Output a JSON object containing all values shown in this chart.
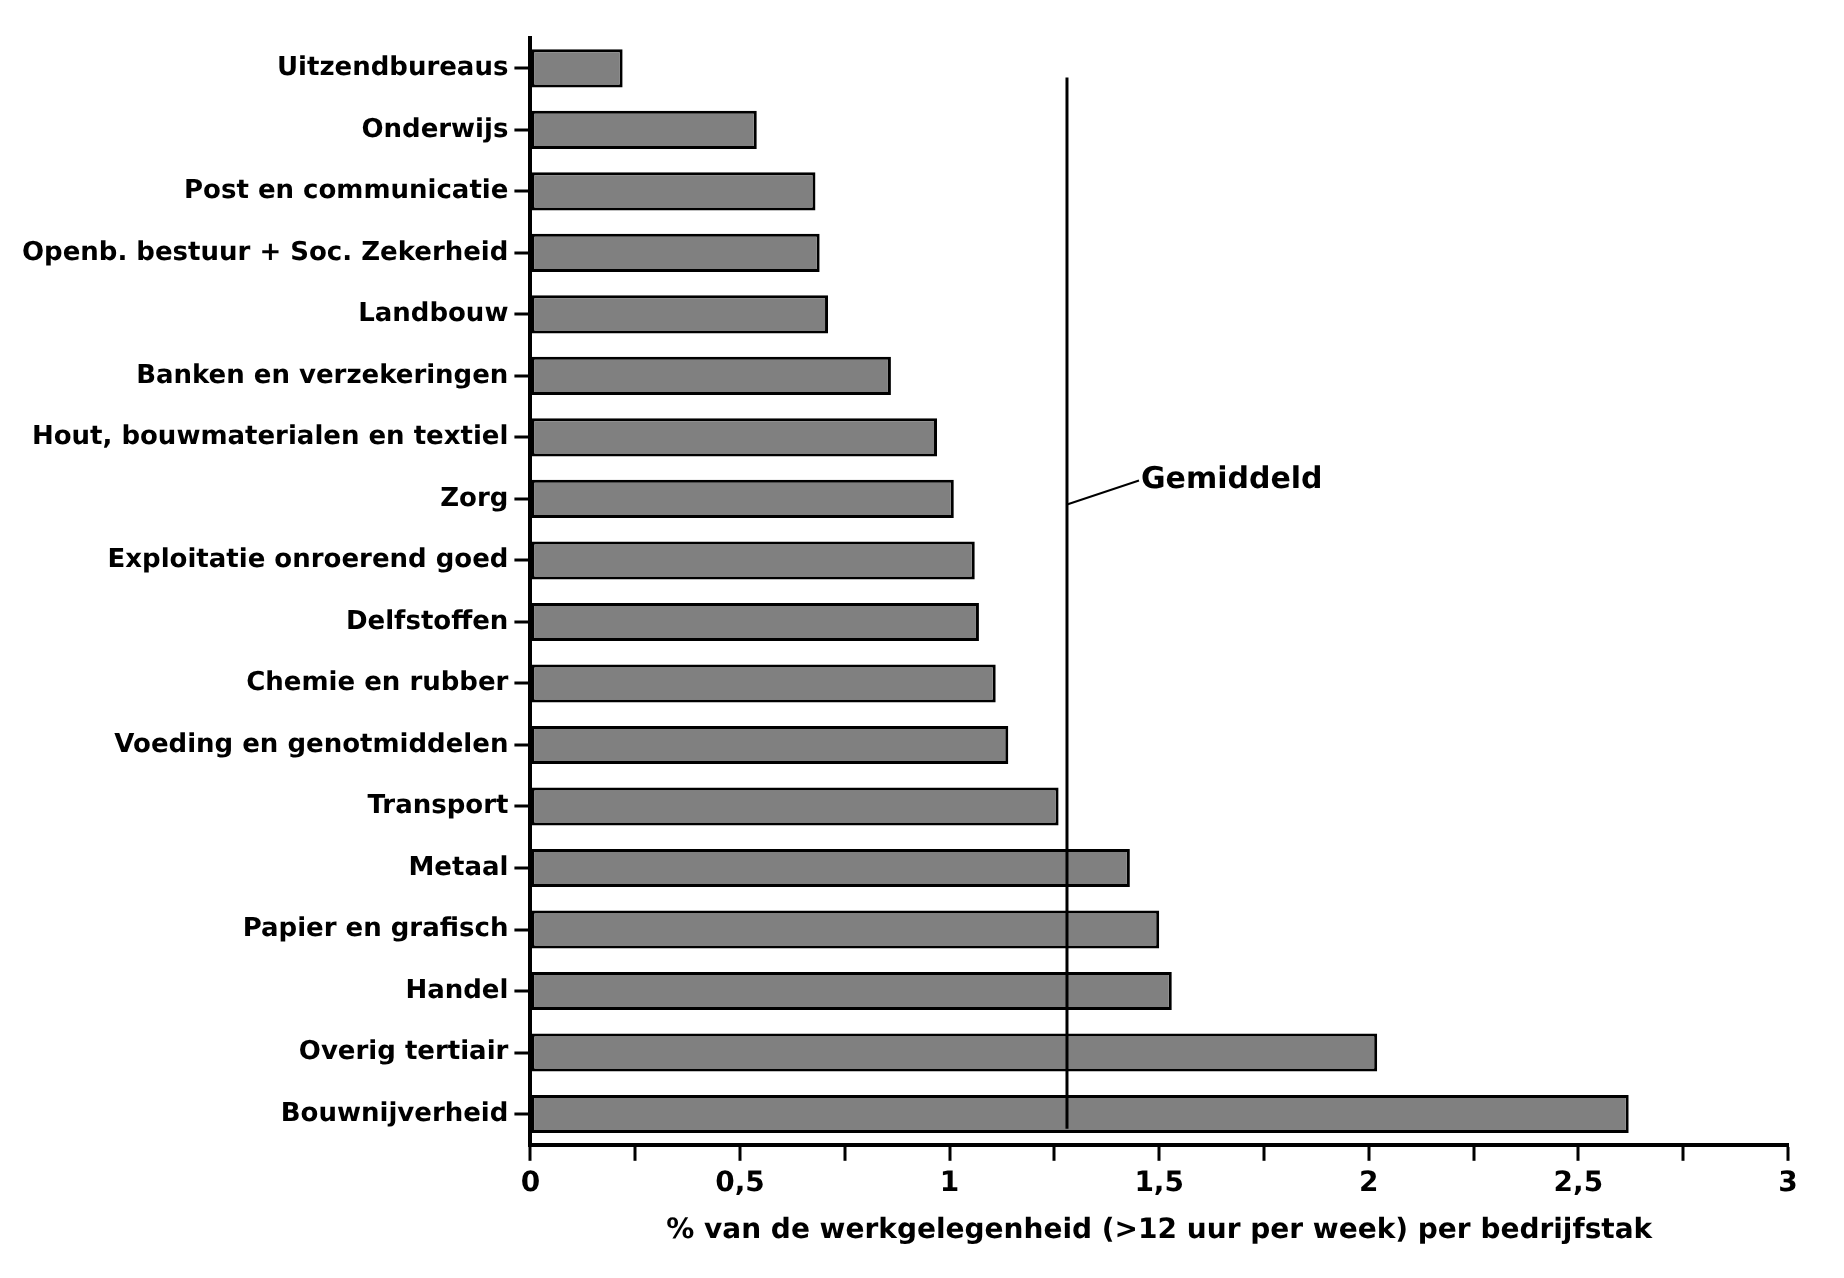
{
  "chart_data": {
    "type": "bar",
    "orientation": "horizontal",
    "xlabel": "% van de werkgelegenheid (>12 uur per week) per bedrijfstak",
    "categories": [
      "Uitzendbureaus",
      "Onderwijs",
      "Post en communicatie",
      "Openb. bestuur + Soc. Zekerheid",
      "Landbouw",
      "Banken en verzekeringen",
      "Hout, bouwmaterialen en textiel",
      "Zorg",
      "Exploitatie onroerend goed",
      "Delfstoffen",
      "Chemie en rubber",
      "Voeding en genotmiddelen",
      "Transport",
      "Metaal",
      "Papier en grafisch",
      "Handel",
      "Overig tertiair",
      "Bouwnijverheid"
    ],
    "values": [
      0.22,
      0.54,
      0.68,
      0.69,
      0.71,
      0.86,
      0.97,
      1.01,
      1.06,
      1.07,
      1.11,
      1.14,
      1.26,
      1.43,
      1.5,
      1.53,
      2.02,
      2.62
    ],
    "color": "#808080",
    "xlim": [
      0,
      3
    ],
    "xticks": [
      0,
      {
        "value": 0.25,
        "label": null
      },
      {
        "value": 0.5,
        "label": "0,5"
      },
      {
        "value": 0.75,
        "label": null
      },
      1,
      {
        "value": 1.25,
        "label": null
      },
      {
        "value": 1.5,
        "label": "1,5"
      },
      {
        "value": 1.75,
        "label": null
      },
      2,
      {
        "value": 2.25,
        "label": null
      },
      {
        "value": 2.5,
        "label": "2,5"
      },
      {
        "value": 2.75,
        "label": null
      },
      3
    ],
    "ref_lines": [
      {
        "axis": "x",
        "value": 1.28,
        "label": "Gemiddeld"
      }
    ],
    "grid": false,
    "legend": false
  }
}
